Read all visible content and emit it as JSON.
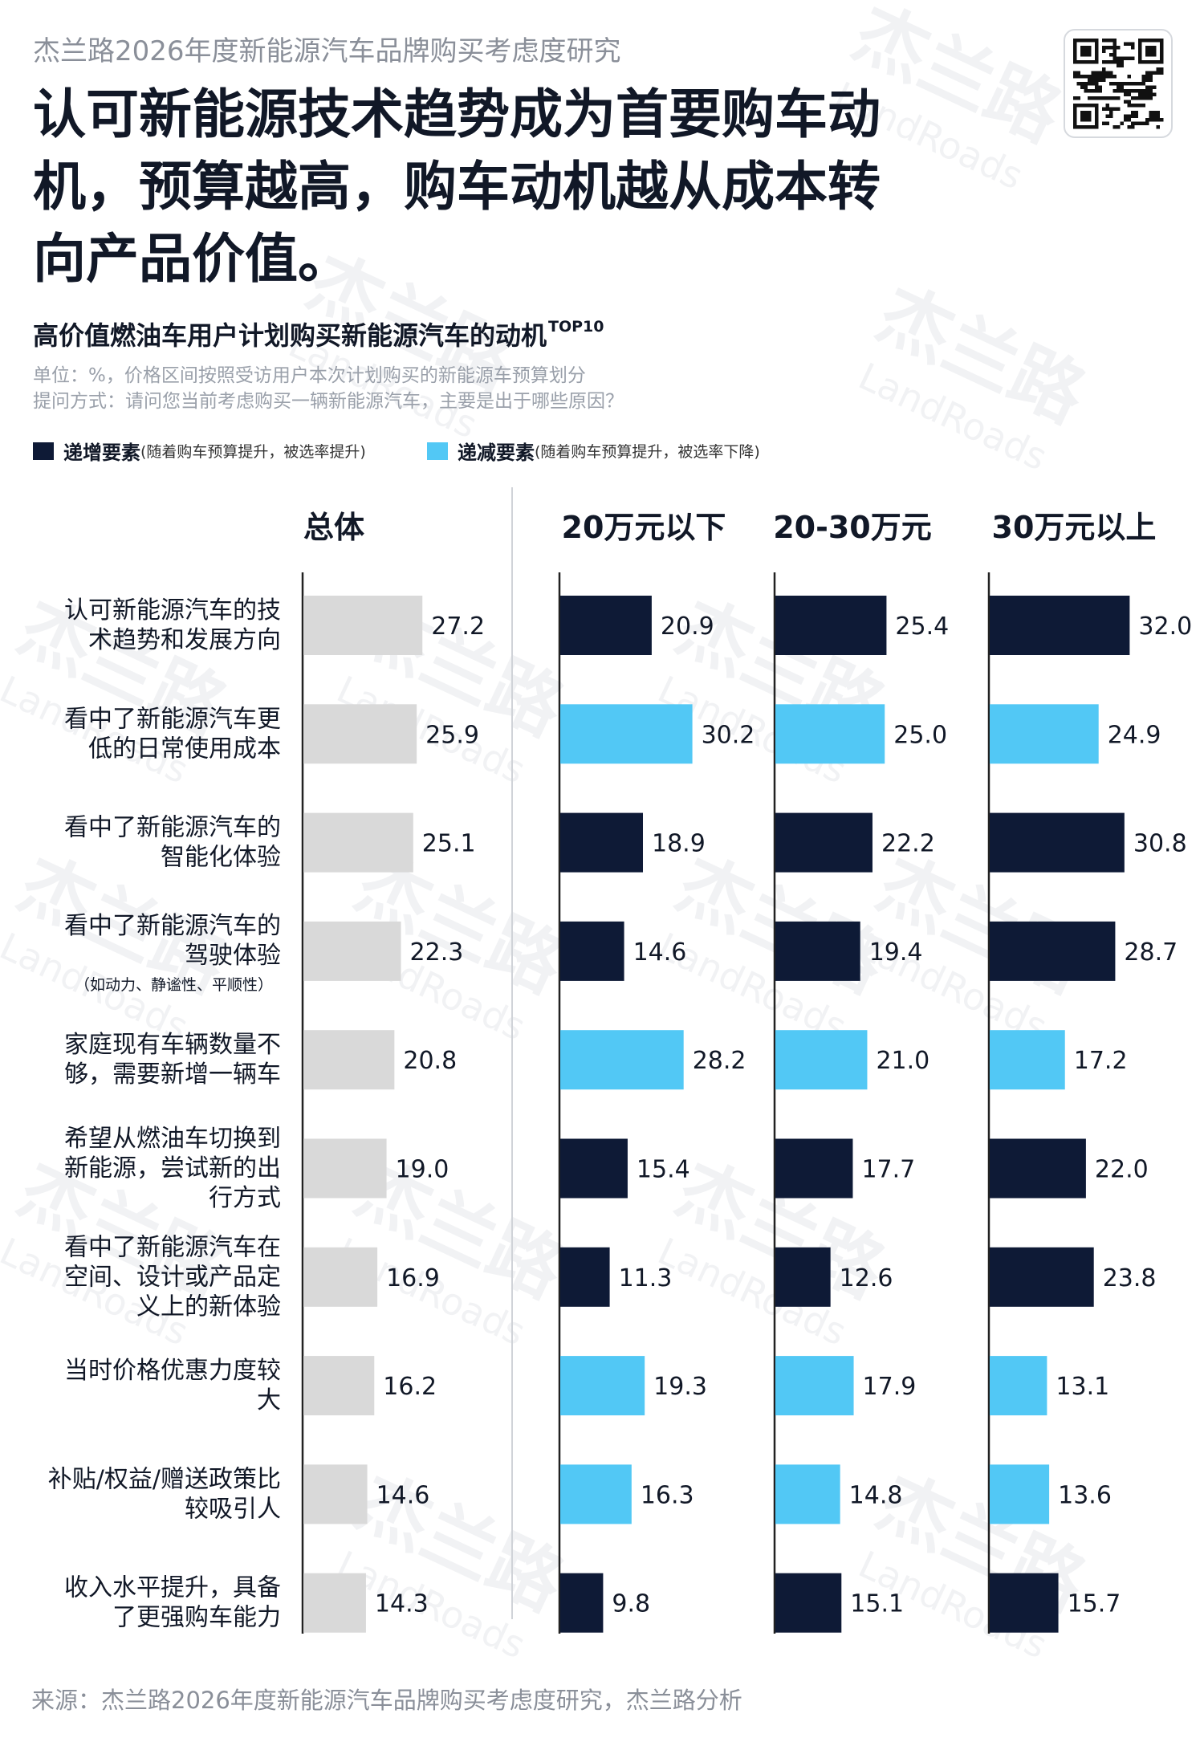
{
  "header": {
    "report_name": "杰兰路2026年度新能源汽车品牌购买考虑度研究",
    "headline_lines": [
      "认可新能源技术趋势成为首要购车动",
      "机，预算越高，购车动机越从成本转",
      "向产品价值。"
    ],
    "qr_code_icon": "qr-code-icon"
  },
  "chart_title": {
    "text": "高价值燃油车用户计划购买新能源汽车的动机",
    "sup": "TOP10"
  },
  "notes": {
    "unit": "单位：%，价格区间按照受访用户本次计划购买的新能源车预算划分",
    "question": "提问方式：请问您当前考虑购买一辆新能源汽车，主要是出于哪些原因？"
  },
  "legend": {
    "increase": {
      "label": "递增要素",
      "note": "(随着购车预算提升，被选率提升)",
      "color": "#0e1a36"
    },
    "decrease": {
      "label": "递减要素",
      "note": "(随着购车预算提升，被选率下降)",
      "color": "#52c8f5"
    }
  },
  "watermark": {
    "brand_cn": "杰兰路",
    "brand_en": "LandRoads"
  },
  "source": "来源：杰兰路2026年度新能源汽车品牌购买考虑度研究，杰兰路分析",
  "chart_data": {
    "type": "bar",
    "orientation": "horizontal",
    "panels": [
      "总体",
      "20万元以下",
      "20-30万元",
      "30万元以上"
    ],
    "categories": [
      {
        "lines": [
          "认可新能源汽车的技",
          "术趋势和发展方向"
        ],
        "trend": "increase"
      },
      {
        "lines": [
          "看中了新能源汽车更",
          "低的日常使用成本"
        ],
        "trend": "decrease"
      },
      {
        "lines": [
          "看中了新能源汽车的",
          "智能化体验"
        ],
        "trend": "increase"
      },
      {
        "lines": [
          "看中了新能源汽车的",
          "驾驶体验"
        ],
        "sublabel": "（如动力、静谧性、平顺性）",
        "trend": "increase"
      },
      {
        "lines": [
          "家庭现有车辆数量不",
          "够，需要新增一辆车"
        ],
        "trend": "decrease"
      },
      {
        "lines": [
          "希望从燃油车切换到",
          "新能源，尝试新的出",
          "行方式"
        ],
        "trend": "increase"
      },
      {
        "lines": [
          "看中了新能源汽车在",
          "空间、设计或产品定",
          "义上的新体验"
        ],
        "trend": "increase"
      },
      {
        "lines": [
          "当时价格优惠力度较",
          "大"
        ],
        "trend": "decrease"
      },
      {
        "lines": [
          "补贴/权益/赠送政策比",
          "较吸引人"
        ],
        "trend": "decrease"
      },
      {
        "lines": [
          "收入水平提升，具备",
          "了更强购车能力"
        ],
        "trend": "increase"
      }
    ],
    "series": [
      {
        "name": "总体",
        "values": [
          27.2,
          25.9,
          25.1,
          22.3,
          20.8,
          19.0,
          16.9,
          16.2,
          14.6,
          14.3
        ],
        "color": "#d9d9d9"
      },
      {
        "name": "20万元以下",
        "values": [
          20.9,
          30.2,
          18.9,
          14.6,
          28.2,
          15.4,
          11.3,
          19.3,
          16.3,
          9.8
        ]
      },
      {
        "name": "20-30万元",
        "values": [
          25.4,
          25.0,
          22.2,
          19.4,
          21.0,
          17.7,
          12.6,
          17.9,
          14.8,
          15.1
        ]
      },
      {
        "name": "30万元以上",
        "values": [
          32.0,
          24.9,
          30.8,
          28.7,
          17.2,
          22.0,
          23.8,
          13.1,
          13.6,
          15.7
        ]
      }
    ],
    "value_format": "0.0"
  }
}
